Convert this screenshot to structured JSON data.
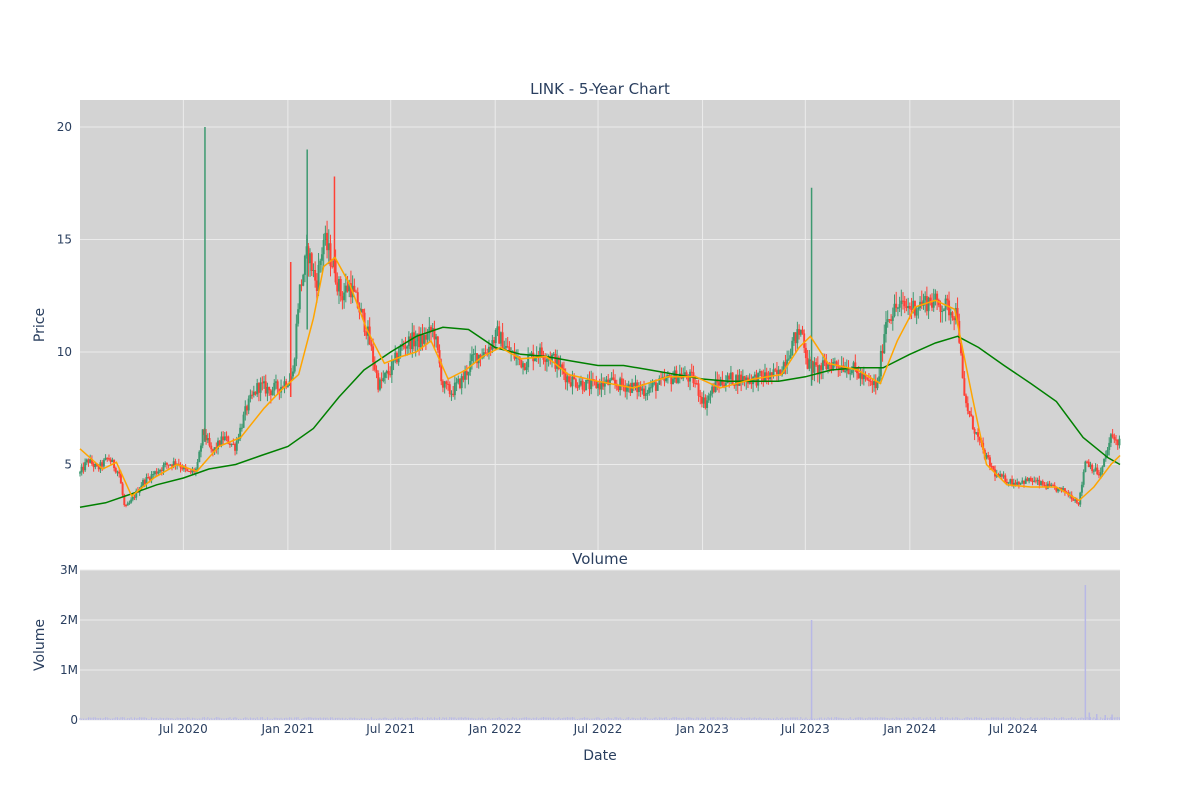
{
  "colors": {
    "plot_bg": "#d3d3d3",
    "grid": "#ebebeb",
    "increasing": "#3d9970",
    "decreasing": "#ff4136",
    "ma_short": "#ffa500",
    "ma_long": "#008000",
    "volume": "#b8b8e6",
    "text": "#2a3f5f"
  },
  "chart_data": [
    {
      "type": "candlestick",
      "title": "LINK - 5-Year Chart",
      "ylabel": "Price",
      "ylim": [
        1.2,
        21.2
      ],
      "yticks": [
        5,
        10,
        15,
        20
      ],
      "xlim": [
        "2020-01-01",
        "2025-01-05"
      ],
      "grid": true,
      "legend": "none",
      "price_path": [
        [
          "2020-01-01",
          4.6
        ],
        [
          "2020-01-15",
          5.2
        ],
        [
          "2020-02-01",
          4.8
        ],
        [
          "2020-02-20",
          5.3
        ],
        [
          "2020-03-10",
          4.6
        ],
        [
          "2020-03-20",
          3.0
        ],
        [
          "2020-04-01",
          3.4
        ],
        [
          "2020-04-20",
          4.2
        ],
        [
          "2020-05-10",
          4.6
        ],
        [
          "2020-06-01",
          5.0
        ],
        [
          "2020-06-20",
          5.1
        ],
        [
          "2020-07-10",
          4.6
        ],
        [
          "2020-07-25",
          4.8
        ],
        [
          "2020-08-05",
          6.5
        ],
        [
          "2020-08-20",
          5.5
        ],
        [
          "2020-09-10",
          6.2
        ],
        [
          "2020-09-30",
          5.8
        ],
        [
          "2020-10-20",
          7.5
        ],
        [
          "2020-11-10",
          8.5
        ],
        [
          "2020-12-01",
          8.3
        ],
        [
          "2020-12-20",
          8.5
        ],
        [
          "2021-01-10",
          9.0
        ],
        [
          "2021-01-20",
          12.5
        ],
        [
          "2021-02-05",
          14.5
        ],
        [
          "2021-02-20",
          13.0
        ],
        [
          "2021-03-05",
          15.0
        ],
        [
          "2021-03-20",
          14.0
        ],
        [
          "2021-04-05",
          12.5
        ],
        [
          "2021-04-20",
          13.0
        ],
        [
          "2021-05-05",
          12.0
        ],
        [
          "2021-05-20",
          11.0
        ],
        [
          "2021-06-10",
          8.5
        ],
        [
          "2021-07-01",
          9.2
        ],
        [
          "2021-07-20",
          10.2
        ],
        [
          "2021-08-05",
          10.5
        ],
        [
          "2021-08-25",
          10.5
        ],
        [
          "2021-09-15",
          11.0
        ],
        [
          "2021-10-01",
          8.5
        ],
        [
          "2021-10-15",
          8.2
        ],
        [
          "2021-11-05",
          8.8
        ],
        [
          "2021-11-25",
          9.8
        ],
        [
          "2021-12-15",
          10.0
        ],
        [
          "2022-01-05",
          10.8
        ],
        [
          "2022-01-25",
          10.0
        ],
        [
          "2022-02-20",
          9.5
        ],
        [
          "2022-03-15",
          10.0
        ],
        [
          "2022-04-10",
          9.8
        ],
        [
          "2022-05-10",
          8.8
        ],
        [
          "2022-06-15",
          8.5
        ],
        [
          "2022-07-20",
          8.6
        ],
        [
          "2022-08-20",
          8.5
        ],
        [
          "2022-09-20",
          8.3
        ],
        [
          "2022-10-20",
          8.6
        ],
        [
          "2022-11-20",
          9.0
        ],
        [
          "2022-12-15",
          8.8
        ],
        [
          "2023-01-05",
          7.7
        ],
        [
          "2023-01-25",
          8.6
        ],
        [
          "2023-02-20",
          8.8
        ],
        [
          "2023-04-01",
          8.8
        ],
        [
          "2023-05-15",
          9.0
        ],
        [
          "2023-06-10",
          10.5
        ],
        [
          "2023-06-25",
          11.0
        ],
        [
          "2023-07-05",
          9.5
        ],
        [
          "2023-07-20",
          9.2
        ],
        [
          "2023-08-20",
          9.5
        ],
        [
          "2023-09-20",
          9.3
        ],
        [
          "2023-10-20",
          8.6
        ],
        [
          "2023-11-05",
          8.5
        ],
        [
          "2023-11-20",
          11.5
        ],
        [
          "2023-12-10",
          12.0
        ],
        [
          "2024-01-05",
          12.0
        ],
        [
          "2024-02-05",
          12.3
        ],
        [
          "2024-03-05",
          12.0
        ],
        [
          "2024-03-25",
          11.7
        ],
        [
          "2024-04-05",
          8.0
        ],
        [
          "2024-04-20",
          6.8
        ],
        [
          "2024-05-10",
          5.5
        ],
        [
          "2024-06-01",
          4.5
        ],
        [
          "2024-07-01",
          4.2
        ],
        [
          "2024-08-01",
          4.3
        ],
        [
          "2024-09-01",
          4.0
        ],
        [
          "2024-10-01",
          3.8
        ],
        [
          "2024-10-25",
          3.3
        ],
        [
          "2024-11-05",
          5.2
        ],
        [
          "2024-12-01",
          4.5
        ],
        [
          "2024-12-20",
          6.2
        ],
        [
          "2025-01-05",
          6.0
        ]
      ],
      "spikes": [
        {
          "date": "2020-08-08",
          "high": 20.0,
          "low": 6.0
        },
        {
          "date": "2021-01-06",
          "high": 14.0,
          "low": 8.0
        },
        {
          "date": "2021-02-04",
          "high": 19.0,
          "low": 11.0
        },
        {
          "date": "2021-03-24",
          "high": 17.8,
          "low": 13.5
        },
        {
          "date": "2023-07-12",
          "high": 17.3,
          "low": 8.5
        }
      ],
      "ma_short_path": [
        [
          "2020-01-01",
          5.7
        ],
        [
          "2020-02-10",
          4.8
        ],
        [
          "2020-03-05",
          5.1
        ],
        [
          "2020-04-01",
          3.6
        ],
        [
          "2020-05-10",
          4.4
        ],
        [
          "2020-06-20",
          5.0
        ],
        [
          "2020-07-25",
          4.7
        ],
        [
          "2020-09-01",
          5.8
        ],
        [
          "2020-10-10",
          6.2
        ],
        [
          "2020-11-20",
          7.5
        ],
        [
          "2020-12-20",
          8.3
        ],
        [
          "2021-01-20",
          9.0
        ],
        [
          "2021-02-15",
          11.5
        ],
        [
          "2021-03-05",
          13.8
        ],
        [
          "2021-03-25",
          14.2
        ],
        [
          "2021-04-20",
          13.0
        ],
        [
          "2021-05-20",
          11.0
        ],
        [
          "2021-06-20",
          9.5
        ],
        [
          "2021-07-20",
          9.8
        ],
        [
          "2021-08-15",
          10.0
        ],
        [
          "2021-09-10",
          10.5
        ],
        [
          "2021-10-10",
          8.8
        ],
        [
          "2021-11-10",
          9.2
        ],
        [
          "2021-12-10",
          9.8
        ],
        [
          "2022-01-10",
          10.2
        ],
        [
          "2022-02-15",
          9.7
        ],
        [
          "2022-04-01",
          9.8
        ],
        [
          "2022-05-10",
          9.0
        ],
        [
          "2022-07-01",
          8.7
        ],
        [
          "2022-09-01",
          8.4
        ],
        [
          "2022-11-01",
          8.9
        ],
        [
          "2022-12-20",
          8.9
        ],
        [
          "2023-02-01",
          8.4
        ],
        [
          "2023-04-01",
          8.8
        ],
        [
          "2023-05-20",
          9.0
        ],
        [
          "2023-06-20",
          10.2
        ],
        [
          "2023-07-10",
          10.7
        ],
        [
          "2023-08-10",
          9.5
        ],
        [
          "2023-10-01",
          9.2
        ],
        [
          "2023-11-10",
          8.6
        ],
        [
          "2023-12-10",
          10.5
        ],
        [
          "2024-01-10",
          12.0
        ],
        [
          "2024-02-15",
          12.3
        ],
        [
          "2024-03-20",
          11.9
        ],
        [
          "2024-04-20",
          8.0
        ],
        [
          "2024-05-15",
          5.0
        ],
        [
          "2024-06-20",
          4.1
        ],
        [
          "2024-08-01",
          4.0
        ],
        [
          "2024-09-15",
          4.0
        ],
        [
          "2024-10-25",
          3.4
        ],
        [
          "2024-11-20",
          4.0
        ],
        [
          "2024-12-20",
          5.0
        ],
        [
          "2025-01-05",
          5.4
        ]
      ],
      "ma_long_path": [
        [
          "2020-01-01",
          3.1
        ],
        [
          "2020-02-15",
          3.3
        ],
        [
          "2020-04-01",
          3.7
        ],
        [
          "2020-05-15",
          4.1
        ],
        [
          "2020-07-01",
          4.4
        ],
        [
          "2020-08-15",
          4.8
        ],
        [
          "2020-10-01",
          5.0
        ],
        [
          "2020-11-15",
          5.4
        ],
        [
          "2021-01-01",
          5.8
        ],
        [
          "2021-02-15",
          6.6
        ],
        [
          "2021-04-01",
          8.0
        ],
        [
          "2021-05-15",
          9.2
        ],
        [
          "2021-07-01",
          10.0
        ],
        [
          "2021-08-15",
          10.7
        ],
        [
          "2021-10-01",
          11.1
        ],
        [
          "2021-11-15",
          11.0
        ],
        [
          "2022-01-01",
          10.2
        ],
        [
          "2022-02-15",
          9.9
        ],
        [
          "2022-04-01",
          9.8
        ],
        [
          "2022-05-15",
          9.6
        ],
        [
          "2022-07-01",
          9.4
        ],
        [
          "2022-08-15",
          9.4
        ],
        [
          "2022-10-01",
          9.2
        ],
        [
          "2022-11-15",
          9.0
        ],
        [
          "2023-01-01",
          8.8
        ],
        [
          "2023-02-15",
          8.7
        ],
        [
          "2023-04-01",
          8.7
        ],
        [
          "2023-05-15",
          8.7
        ],
        [
          "2023-07-01",
          8.9
        ],
        [
          "2023-08-15",
          9.2
        ],
        [
          "2023-10-01",
          9.3
        ],
        [
          "2023-11-15",
          9.3
        ],
        [
          "2024-01-01",
          9.9
        ],
        [
          "2024-02-15",
          10.4
        ],
        [
          "2024-03-25",
          10.7
        ],
        [
          "2024-05-01",
          10.2
        ],
        [
          "2024-06-15",
          9.4
        ],
        [
          "2024-08-01",
          8.6
        ],
        [
          "2024-09-15",
          7.8
        ],
        [
          "2024-11-01",
          6.2
        ],
        [
          "2024-12-15",
          5.3
        ],
        [
          "2025-01-05",
          5.0
        ]
      ]
    },
    {
      "type": "bar",
      "title": "Volume",
      "ylabel": "Volume",
      "xlabel": "Date",
      "ylim": [
        0,
        3000000
      ],
      "yticks": [
        0,
        1000000,
        2000000,
        3000000
      ],
      "ytick_labels": [
        "0",
        "1M",
        "2M",
        "3M"
      ],
      "xticks": [
        "2020-07-01",
        "2021-01-01",
        "2021-07-01",
        "2022-01-01",
        "2022-07-01",
        "2023-01-01",
        "2023-07-01",
        "2024-01-01",
        "2024-07-01"
      ],
      "xtick_labels": [
        "Jul 2020",
        "Jan 2021",
        "Jul 2021",
        "Jan 2022",
        "Jul 2022",
        "Jan 2023",
        "Jul 2023",
        "Jan 2024",
        "Jul 2024"
      ],
      "baseline_volume": 40000,
      "volume_spikes": [
        {
          "date": "2023-07-12",
          "value": 2000000
        },
        {
          "date": "2024-11-05",
          "value": 2700000
        },
        {
          "date": "2024-11-12",
          "value": 150000
        },
        {
          "date": "2024-11-25",
          "value": 120000
        },
        {
          "date": "2024-12-10",
          "value": 100000
        },
        {
          "date": "2024-12-22",
          "value": 110000
        }
      ]
    }
  ]
}
